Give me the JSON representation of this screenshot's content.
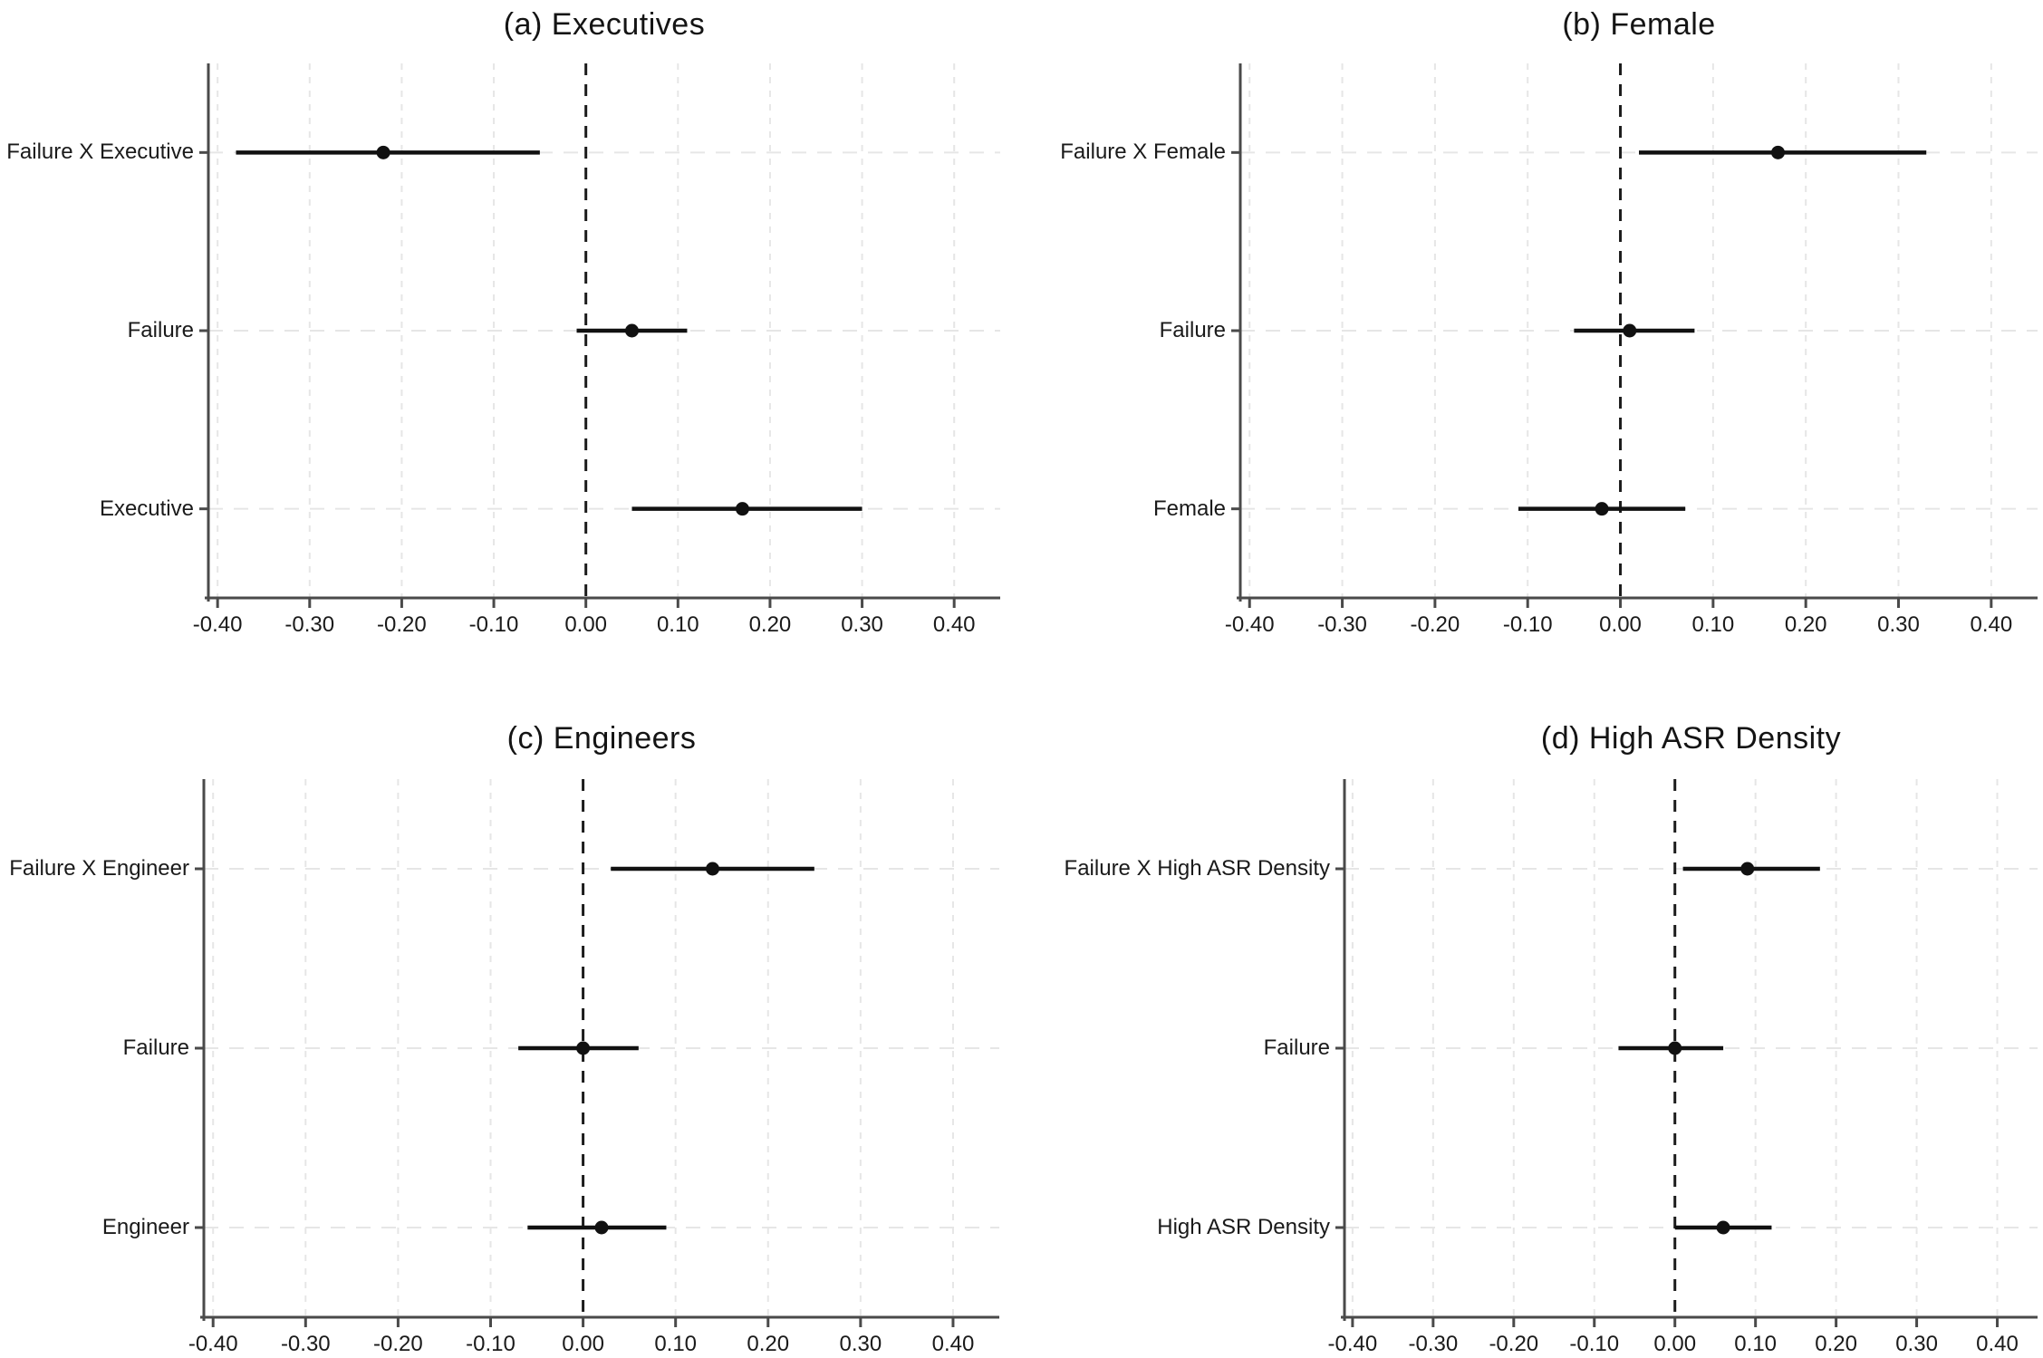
{
  "figure": {
    "background": "#ffffff",
    "axis_color": "#4a4a4a",
    "grid_color": "#e6e6e6",
    "zero_line_color": "#1c1c1c",
    "data_color": "#111111",
    "text_color": "#1a1a1a",
    "xtick_labels": [
      "-0.40",
      "-0.30",
      "-0.20",
      "-0.10",
      "0.00",
      "0.10",
      "0.20",
      "0.30",
      "0.40"
    ],
    "xtick_values": [
      -0.4,
      -0.3,
      -0.2,
      -0.1,
      0.0,
      0.1,
      0.2,
      0.3,
      0.4
    ],
    "xlim": [
      -0.41,
      0.45
    ]
  },
  "chart_data": [
    {
      "type": "scatter",
      "subtype": "coefficient-plot-horizontal-ci",
      "title": "(a) Executives",
      "xlabel": "",
      "ylabel": "",
      "legend": "none",
      "grid": "dashed-light",
      "zero_reference_line": 0.0,
      "xlim": [
        -0.41,
        0.45
      ],
      "rows": [
        {
          "label": "Failure X Executive",
          "estimate": -0.22,
          "ci_low": -0.38,
          "ci_high": -0.05
        },
        {
          "label": "Failure",
          "estimate": 0.05,
          "ci_low": -0.01,
          "ci_high": 0.11
        },
        {
          "label": "Executive",
          "estimate": 0.17,
          "ci_low": 0.05,
          "ci_high": 0.3
        }
      ]
    },
    {
      "type": "scatter",
      "subtype": "coefficient-plot-horizontal-ci",
      "title": "(b) Female",
      "xlabel": "",
      "ylabel": "",
      "legend": "none",
      "grid": "dashed-light",
      "zero_reference_line": 0.0,
      "xlim": [
        -0.41,
        0.45
      ],
      "rows": [
        {
          "label": "Failure X Female",
          "estimate": 0.17,
          "ci_low": 0.02,
          "ci_high": 0.33
        },
        {
          "label": "Failure",
          "estimate": 0.01,
          "ci_low": -0.05,
          "ci_high": 0.08
        },
        {
          "label": "Female",
          "estimate": -0.02,
          "ci_low": -0.11,
          "ci_high": 0.07
        }
      ]
    },
    {
      "type": "scatter",
      "subtype": "coefficient-plot-horizontal-ci",
      "title": "(c) Engineers",
      "xlabel": "",
      "ylabel": "",
      "legend": "none",
      "grid": "dashed-light",
      "zero_reference_line": 0.0,
      "xlim": [
        -0.41,
        0.45
      ],
      "rows": [
        {
          "label": "Failure X Engineer",
          "estimate": 0.14,
          "ci_low": 0.03,
          "ci_high": 0.25
        },
        {
          "label": "Failure",
          "estimate": 0.0,
          "ci_low": -0.07,
          "ci_high": 0.06
        },
        {
          "label": "Engineer",
          "estimate": 0.02,
          "ci_low": -0.06,
          "ci_high": 0.09
        }
      ]
    },
    {
      "type": "scatter",
      "subtype": "coefficient-plot-horizontal-ci",
      "title": "(d) High ASR Density",
      "xlabel": "",
      "ylabel": "",
      "legend": "none",
      "grid": "dashed-light",
      "zero_reference_line": 0.0,
      "xlim": [
        -0.41,
        0.45
      ],
      "rows": [
        {
          "label": "Failure X High ASR Density",
          "estimate": 0.09,
          "ci_low": 0.01,
          "ci_high": 0.18
        },
        {
          "label": "Failure",
          "estimate": 0.0,
          "ci_low": -0.07,
          "ci_high": 0.06
        },
        {
          "label": "High ASR Density",
          "estimate": 0.06,
          "ci_low": 0.0,
          "ci_high": 0.12
        }
      ]
    }
  ]
}
